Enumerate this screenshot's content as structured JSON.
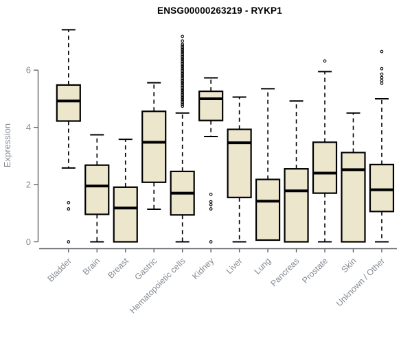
{
  "title": "ENSG00000263219 - RYKP1",
  "colors": {
    "box_fill": "#ECE6CD",
    "box_stroke": "#000000",
    "axis_line": "#5f6369",
    "tick_label": "#848b93",
    "title_color": "#000000",
    "background": "#FFFFFF"
  },
  "chart_data": {
    "type": "boxplot",
    "title": "ENSG00000263219 - RYKP1",
    "xlabel": "",
    "ylabel": "Expression",
    "ylim": [
      0,
      7.5
    ],
    "yticks": [
      0,
      2,
      4,
      6
    ],
    "grid": false,
    "categories": [
      "Bladder",
      "Brain",
      "Breast",
      "Gastric",
      "Hematopoietic cells",
      "Kidney",
      "Liver",
      "Lung",
      "Pancreas",
      "Prostate",
      "Skin",
      "Unknown / Other"
    ],
    "boxes": [
      {
        "category": "Bladder",
        "whisker_low": 2.58,
        "q1": 4.22,
        "median": 4.92,
        "q3": 5.48,
        "whisker_high": 7.41,
        "outliers": [
          1.37,
          1.15,
          0.0
        ]
      },
      {
        "category": "Brain",
        "whisker_low": 0.0,
        "q1": 0.96,
        "median": 1.95,
        "q3": 2.68,
        "whisker_high": 3.74,
        "outliers": []
      },
      {
        "category": "Breast",
        "whisker_low": 0.0,
        "q1": 0.0,
        "median": 1.18,
        "q3": 1.91,
        "whisker_high": 3.58,
        "outliers": []
      },
      {
        "category": "Gastric",
        "whisker_low": 1.14,
        "q1": 2.08,
        "median": 3.48,
        "q3": 4.56,
        "whisker_high": 5.56,
        "outliers": []
      },
      {
        "category": "Hematopoietic cells",
        "whisker_low": 0.0,
        "q1": 0.94,
        "median": 1.7,
        "q3": 2.46,
        "whisker_high": 4.5,
        "outliers": [
          7.18,
          7.02,
          6.9,
          6.84,
          6.78,
          6.72,
          6.66,
          6.6,
          6.54,
          6.48,
          6.42,
          6.36,
          6.3,
          6.24,
          6.18,
          6.12,
          6.06,
          6.0,
          5.94,
          5.88,
          5.82,
          5.76,
          5.7,
          5.64,
          5.58,
          5.52,
          5.46,
          5.4,
          5.34,
          5.28,
          5.22,
          5.16,
          5.1,
          5.04,
          4.98,
          4.92,
          4.86,
          4.8,
          4.74
        ]
      },
      {
        "category": "Kidney",
        "whisker_low": 3.68,
        "q1": 4.24,
        "median": 5.0,
        "q3": 5.26,
        "whisker_high": 5.73,
        "outliers": [
          1.66,
          1.4,
          1.3,
          1.15,
          0.0
        ]
      },
      {
        "category": "Liver",
        "whisker_low": 0.0,
        "q1": 1.55,
        "median": 3.46,
        "q3": 3.93,
        "whisker_high": 5.06,
        "outliers": []
      },
      {
        "category": "Lung",
        "whisker_low": 0.06,
        "q1": 0.06,
        "median": 1.42,
        "q3": 2.18,
        "whisker_high": 5.35,
        "outliers": []
      },
      {
        "category": "Pancreas",
        "whisker_low": 0.0,
        "q1": 0.0,
        "median": 1.78,
        "q3": 2.55,
        "whisker_high": 4.92,
        "outliers": []
      },
      {
        "category": "Prostate",
        "whisker_low": 0.0,
        "q1": 1.7,
        "median": 2.4,
        "q3": 3.48,
        "whisker_high": 5.95,
        "outliers": [
          6.32
        ]
      },
      {
        "category": "Skin",
        "whisker_low": 0.0,
        "q1": 0.0,
        "median": 2.52,
        "q3": 3.12,
        "whisker_high": 4.5,
        "outliers": []
      },
      {
        "category": "Unknown / Other",
        "whisker_low": 0.0,
        "q1": 1.06,
        "median": 1.82,
        "q3": 2.7,
        "whisker_high": 5.0,
        "outliers": [
          6.65,
          6.05,
          5.86,
          5.74,
          5.64,
          5.54
        ]
      }
    ]
  }
}
